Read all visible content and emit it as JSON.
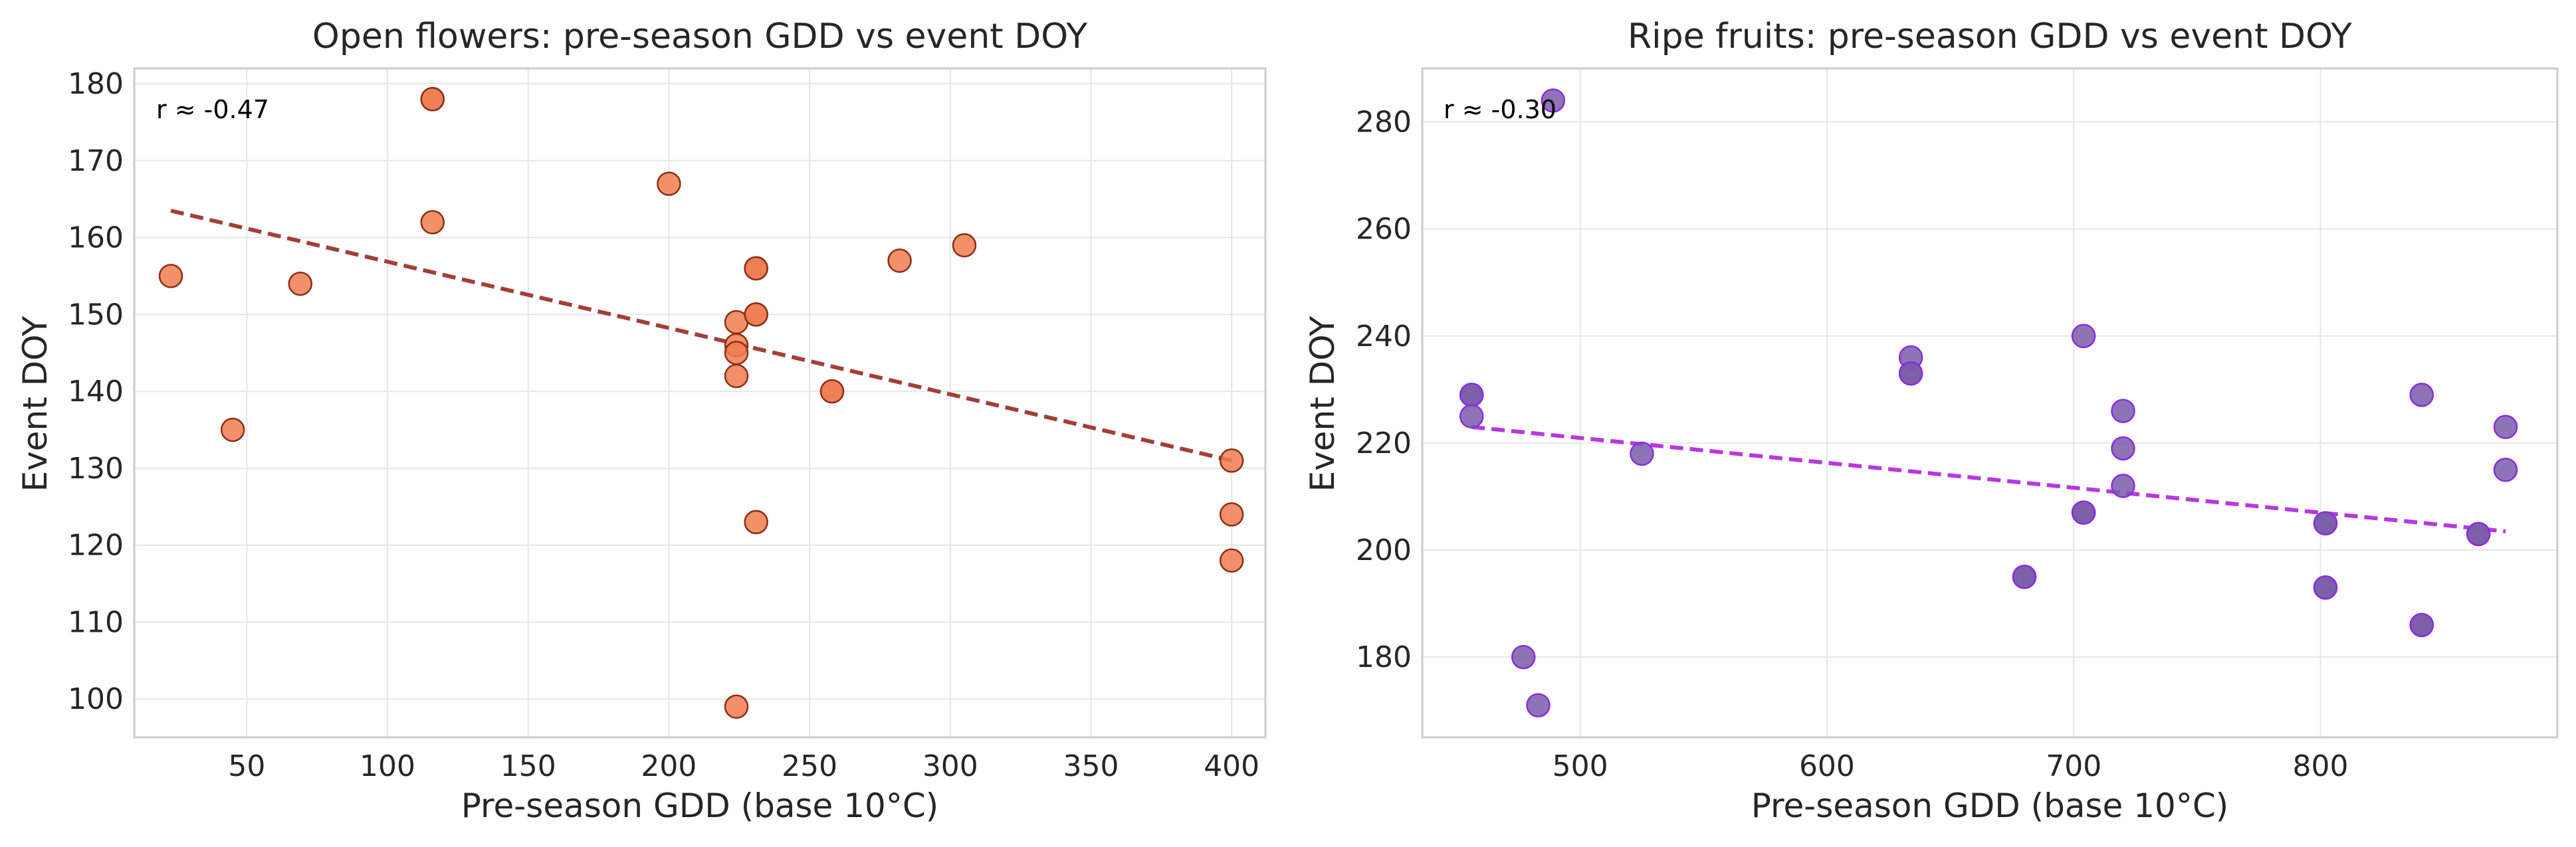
{
  "chart_data": [
    {
      "type": "scatter",
      "title": "Open flowers: pre-season GDD vs event DOY",
      "xlabel": "Pre-season GDD (base 10°C)",
      "ylabel": "Event DOY",
      "xlim": [
        10,
        412
      ],
      "ylim": [
        95,
        182
      ],
      "xticks": [
        50,
        100,
        150,
        200,
        250,
        300,
        350,
        400
      ],
      "yticks": [
        100,
        110,
        120,
        130,
        140,
        150,
        160,
        170,
        180
      ],
      "grid": true,
      "annotation": "r ≈ -0.47",
      "point_color": "#f07c50",
      "edge_color": "#8b2e16",
      "trend_color": "#a43e38",
      "points": [
        {
          "x": 23,
          "y": 155
        },
        {
          "x": 45,
          "y": 135
        },
        {
          "x": 69,
          "y": 154
        },
        {
          "x": 116,
          "y": 178
        },
        {
          "x": 116,
          "y": 178
        },
        {
          "x": 116,
          "y": 162
        },
        {
          "x": 200,
          "y": 167
        },
        {
          "x": 224,
          "y": 149
        },
        {
          "x": 224,
          "y": 146
        },
        {
          "x": 224,
          "y": 145
        },
        {
          "x": 224,
          "y": 142
        },
        {
          "x": 224,
          "y": 99
        },
        {
          "x": 231,
          "y": 156
        },
        {
          "x": 231,
          "y": 156
        },
        {
          "x": 231,
          "y": 150
        },
        {
          "x": 231,
          "y": 150
        },
        {
          "x": 231,
          "y": 123
        },
        {
          "x": 258,
          "y": 140
        },
        {
          "x": 258,
          "y": 140
        },
        {
          "x": 282,
          "y": 157
        },
        {
          "x": 305,
          "y": 159
        },
        {
          "x": 400,
          "y": 131
        },
        {
          "x": 400,
          "y": 124
        },
        {
          "x": 400,
          "y": 118
        }
      ],
      "trend": {
        "x1": 23,
        "y1": 163.5,
        "x2": 400,
        "y2": 131
      }
    },
    {
      "type": "scatter",
      "title": "Ripe fruits: pre-season GDD vs event DOY",
      "xlabel": "Pre-season GDD (base 10°C)",
      "ylabel": "Event DOY",
      "xlim": [
        436,
        896
      ],
      "ylim": [
        165,
        290
      ],
      "xticks": [
        500,
        600,
        700,
        800
      ],
      "yticks": [
        180,
        200,
        220,
        240,
        260,
        280
      ],
      "grid": true,
      "annotation": "r ≈ -0.30",
      "point_color": "#7a5ca8",
      "edge_color": "#8a2be2",
      "trend_color": "#b838e0",
      "points": [
        {
          "x": 456,
          "y": 229
        },
        {
          "x": 456,
          "y": 229
        },
        {
          "x": 456,
          "y": 225
        },
        {
          "x": 477,
          "y": 180
        },
        {
          "x": 483,
          "y": 171
        },
        {
          "x": 489,
          "y": 284
        },
        {
          "x": 525,
          "y": 218
        },
        {
          "x": 634,
          "y": 236
        },
        {
          "x": 634,
          "y": 233
        },
        {
          "x": 634,
          "y": 233
        },
        {
          "x": 680,
          "y": 195
        },
        {
          "x": 680,
          "y": 195
        },
        {
          "x": 704,
          "y": 240
        },
        {
          "x": 704,
          "y": 207
        },
        {
          "x": 704,
          "y": 207
        },
        {
          "x": 720,
          "y": 226
        },
        {
          "x": 720,
          "y": 219
        },
        {
          "x": 720,
          "y": 212
        },
        {
          "x": 802,
          "y": 205
        },
        {
          "x": 802,
          "y": 205
        },
        {
          "x": 802,
          "y": 193
        },
        {
          "x": 802,
          "y": 193
        },
        {
          "x": 841,
          "y": 229
        },
        {
          "x": 841,
          "y": 186
        },
        {
          "x": 841,
          "y": 186
        },
        {
          "x": 864,
          "y": 203
        },
        {
          "x": 864,
          "y": 203
        },
        {
          "x": 875,
          "y": 223
        },
        {
          "x": 875,
          "y": 215
        }
      ],
      "trend": {
        "x1": 456,
        "y1": 223,
        "x2": 875,
        "y2": 203.5
      }
    }
  ]
}
